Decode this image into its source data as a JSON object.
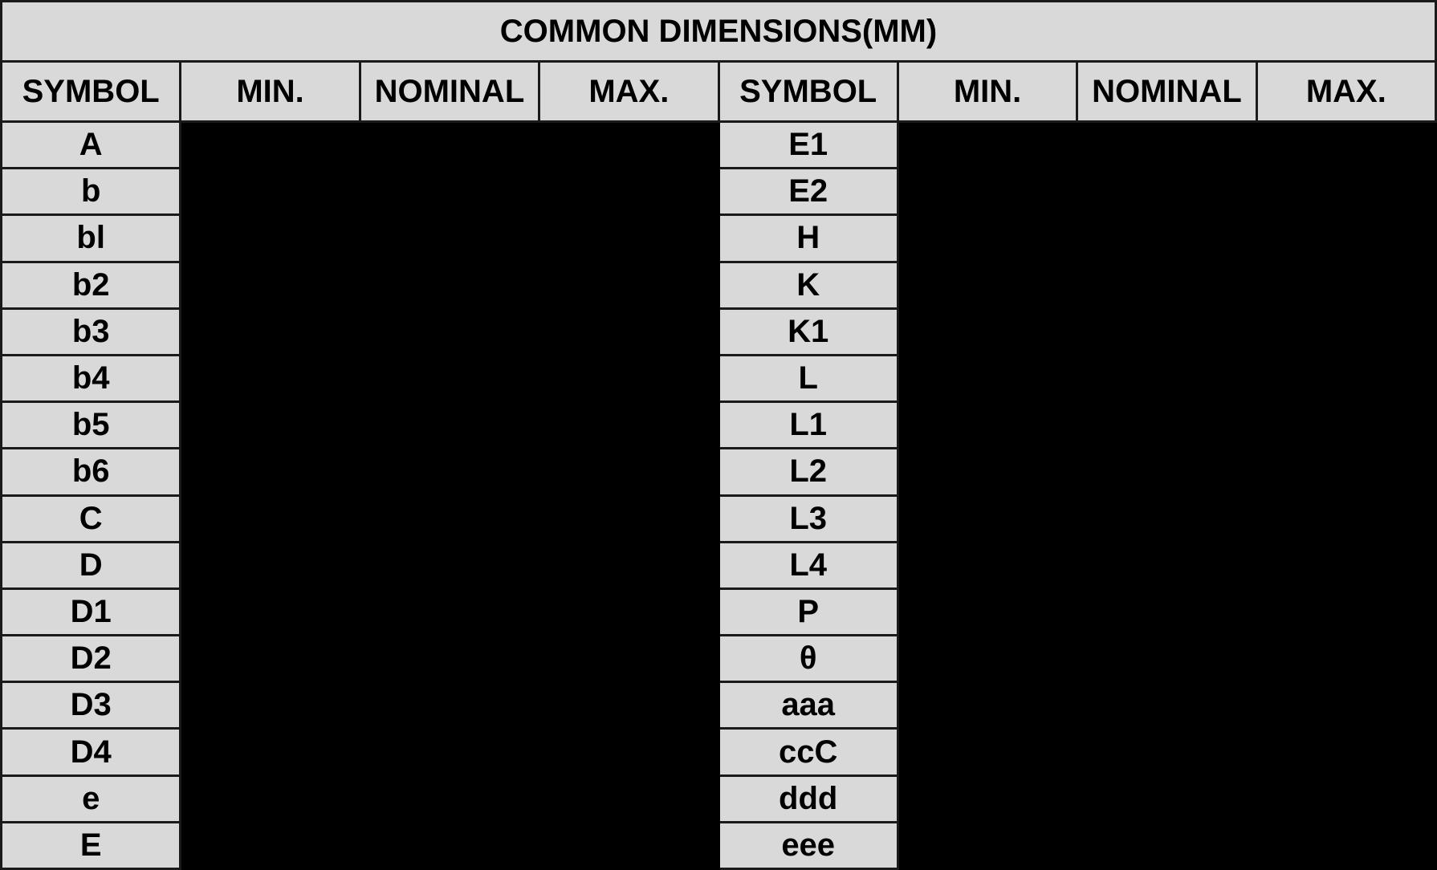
{
  "title": "COMMON DIMENSIONS(MM)",
  "headers": [
    "SYMBOL",
    "MIN.",
    "NOMINAL",
    "MAX.",
    "SYMBOL",
    "MIN.",
    "NOMINAL",
    "MAX."
  ],
  "left_symbols": [
    "A",
    "b",
    "bl",
    "b2",
    "b3",
    "b4",
    "b5",
    "b6",
    "C",
    "D",
    "D1",
    "D2",
    "D3",
    "D4",
    "e",
    "E"
  ],
  "right_symbols": [
    "E1",
    "E2",
    "H",
    "K",
    "K1",
    "L",
    "L1",
    "L2",
    "L3",
    "L4",
    "P",
    "θ",
    "aaa",
    "ccC",
    "ddd",
    "eee"
  ],
  "colors": {
    "header_bg": "#d9d9d9",
    "value_cells": "#000000",
    "border": "#1a1a1a"
  }
}
